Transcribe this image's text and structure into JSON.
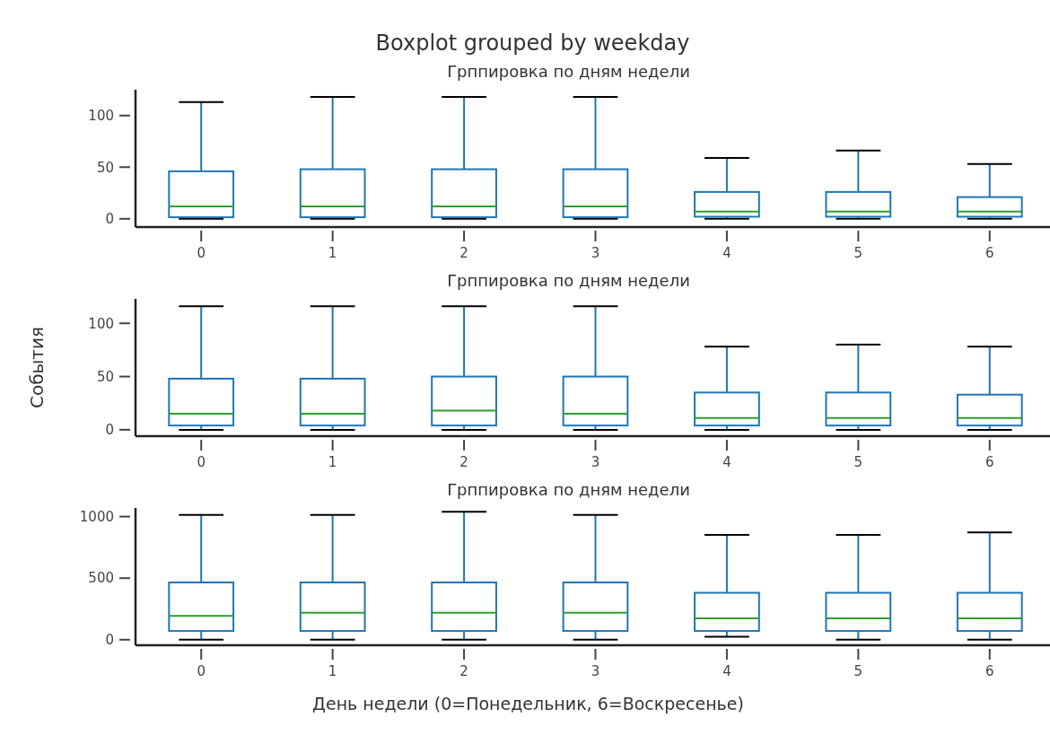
{
  "chart_data": [
    {
      "type": "box",
      "title": "Boxplot grouped by weekday",
      "subtitle": "Грппировка по дням недели",
      "categories": [
        "0",
        "1",
        "2",
        "3",
        "4",
        "5",
        "6"
      ],
      "ylim": [
        -8,
        125
      ],
      "yticks": [
        0,
        50,
        100
      ],
      "grid": false,
      "series": [
        {
          "color": "#1f77b4",
          "boxes": [
            {
              "low": 0,
              "q1": 1.5,
              "median": 12,
              "q3": 46,
              "high": 113
            },
            {
              "low": 0,
              "q1": 1.5,
              "median": 12,
              "q3": 48,
              "high": 118
            },
            {
              "low": 0,
              "q1": 1.5,
              "median": 12,
              "q3": 48,
              "high": 118
            },
            {
              "low": 0,
              "q1": 1.5,
              "median": 12,
              "q3": 48,
              "high": 118
            },
            {
              "low": 0,
              "q1": 2,
              "median": 7,
              "q3": 26,
              "high": 59
            },
            {
              "low": 0,
              "q1": 2,
              "median": 7,
              "q3": 26,
              "high": 66
            },
            {
              "low": 0,
              "q1": 2,
              "median": 7,
              "q3": 21,
              "high": 53
            }
          ]
        }
      ]
    },
    {
      "type": "box",
      "title": "Грппировка по дням недели",
      "ylabel": "События",
      "categories": [
        "0",
        "1",
        "2",
        "3",
        "4",
        "5",
        "6"
      ],
      "ylim": [
        -6,
        123
      ],
      "yticks": [
        0,
        50,
        100
      ],
      "grid": false,
      "series": [
        {
          "color": "#1f77b4",
          "boxes": [
            {
              "low": 0,
              "q1": 4,
              "median": 15,
              "q3": 48,
              "high": 116
            },
            {
              "low": 0,
              "q1": 4,
              "median": 15,
              "q3": 48,
              "high": 116
            },
            {
              "low": 0,
              "q1": 4,
              "median": 18,
              "q3": 50,
              "high": 116
            },
            {
              "low": 0,
              "q1": 4,
              "median": 15,
              "q3": 50,
              "high": 116
            },
            {
              "low": 0,
              "q1": 4,
              "median": 11,
              "q3": 35,
              "high": 78
            },
            {
              "low": 0,
              "q1": 4,
              "median": 11,
              "q3": 35,
              "high": 80
            },
            {
              "low": 0,
              "q1": 4,
              "median": 11,
              "q3": 33,
              "high": 78
            }
          ]
        }
      ]
    },
    {
      "type": "box",
      "title": "Грппировка по дням недели",
      "xlabel": "День недели (0=Понедельник, 6=Воскресенье)",
      "categories": [
        "0",
        "1",
        "2",
        "3",
        "4",
        "5",
        "6"
      ],
      "ylim": [
        -45,
        1070
      ],
      "yticks": [
        0,
        500,
        1000
      ],
      "grid": false,
      "series": [
        {
          "color": "#1f77b4",
          "boxes": [
            {
              "low": 0,
              "q1": 71,
              "median": 194,
              "q3": 465,
              "high": 1013
            },
            {
              "low": 0,
              "q1": 71,
              "median": 219,
              "q3": 465,
              "high": 1013
            },
            {
              "low": 0,
              "q1": 71,
              "median": 219,
              "q3": 465,
              "high": 1039
            },
            {
              "low": 0,
              "q1": 71,
              "median": 219,
              "q3": 465,
              "high": 1013
            },
            {
              "low": 25,
              "q1": 71,
              "median": 174,
              "q3": 381,
              "high": 852
            },
            {
              "low": 0,
              "q1": 71,
              "median": 174,
              "q3": 381,
              "high": 852
            },
            {
              "low": 0,
              "q1": 71,
              "median": 174,
              "q3": 381,
              "high": 871
            }
          ]
        }
      ]
    }
  ]
}
